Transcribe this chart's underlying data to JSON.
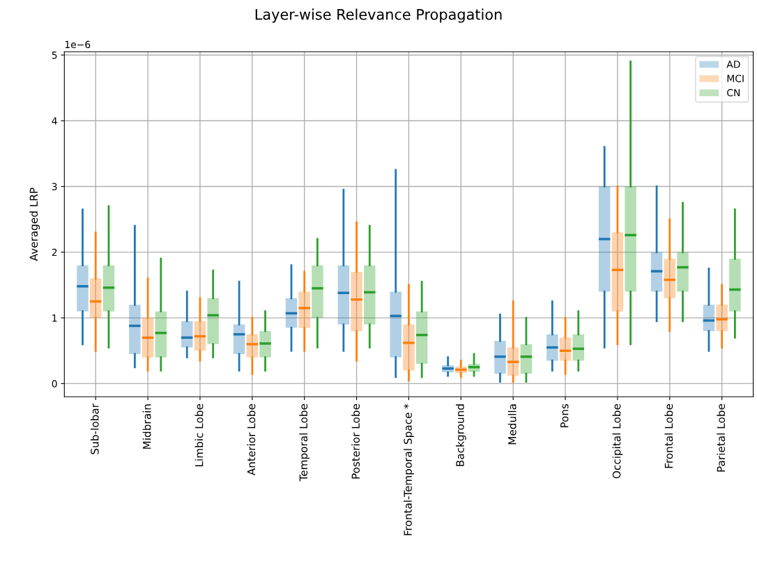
{
  "chart_data": {
    "type": "box",
    "title": "Layer-wise Relevance Propagation",
    "ylabel": "Averaged LRP",
    "annotations": [
      "1e−6"
    ],
    "categories": [
      "Sub-lobar",
      "Midbrain",
      "Limbic Lobe",
      "Anterior Lobe",
      "Temporal Lobe",
      "Posterior Lobe",
      "Frontal-Temporal Space *",
      "Background",
      "Medulla",
      "Pons",
      "Occipital Lobe",
      "Frontal Lobe",
      "Parietal Lobe"
    ],
    "ylim": [
      -0.2,
      5.05
    ],
    "yticks": [
      0,
      1,
      2,
      3,
      4,
      5
    ],
    "grid": true,
    "legend": "top right",
    "series": [
      {
        "name": "AD",
        "color": "#1f77b4",
        "boxes": [
          {
            "low": 0.6,
            "q1": 1.1,
            "median": 1.48,
            "q3": 1.8,
            "high": 2.65
          },
          {
            "low": 0.25,
            "q1": 0.45,
            "median": 0.88,
            "q3": 1.2,
            "high": 2.4
          },
          {
            "low": 0.4,
            "q1": 0.55,
            "median": 0.7,
            "q3": 0.95,
            "high": 1.4
          },
          {
            "low": 0.2,
            "q1": 0.45,
            "median": 0.75,
            "q3": 0.9,
            "high": 1.55
          },
          {
            "low": 0.5,
            "q1": 0.85,
            "median": 1.07,
            "q3": 1.3,
            "high": 1.8
          },
          {
            "low": 0.5,
            "q1": 0.9,
            "median": 1.38,
            "q3": 1.8,
            "high": 2.95
          },
          {
            "low": 0.1,
            "q1": 0.4,
            "median": 1.03,
            "q3": 1.4,
            "high": 3.25
          },
          {
            "low": 0.12,
            "q1": 0.17,
            "median": 0.23,
            "q3": 0.28,
            "high": 0.4
          },
          {
            "low": 0.03,
            "q1": 0.15,
            "median": 0.41,
            "q3": 0.65,
            "high": 1.05
          },
          {
            "low": 0.2,
            "q1": 0.35,
            "median": 0.55,
            "q3": 0.75,
            "high": 1.25
          },
          {
            "low": 0.55,
            "q1": 1.4,
            "median": 2.2,
            "q3": 3.0,
            "high": 3.6
          },
          {
            "low": 0.95,
            "q1": 1.4,
            "median": 1.71,
            "q3": 2.0,
            "high": 3.0
          },
          {
            "low": 0.5,
            "q1": 0.8,
            "median": 0.96,
            "q3": 1.2,
            "high": 1.75
          }
        ]
      },
      {
        "name": "MCI",
        "color": "#ff7f0e",
        "boxes": [
          {
            "low": 0.5,
            "q1": 1.0,
            "median": 1.25,
            "q3": 1.6,
            "high": 2.3
          },
          {
            "low": 0.2,
            "q1": 0.4,
            "median": 0.7,
            "q3": 1.0,
            "high": 1.6
          },
          {
            "low": 0.35,
            "q1": 0.5,
            "median": 0.72,
            "q3": 0.95,
            "high": 1.3
          },
          {
            "low": 0.15,
            "q1": 0.4,
            "median": 0.6,
            "q3": 0.75,
            "high": 1.0
          },
          {
            "low": 0.5,
            "q1": 0.85,
            "median": 1.15,
            "q3": 1.4,
            "high": 1.7
          },
          {
            "low": 0.35,
            "q1": 0.8,
            "median": 1.28,
            "q3": 1.7,
            "high": 2.45
          },
          {
            "low": 0.05,
            "q1": 0.2,
            "median": 0.62,
            "q3": 0.9,
            "high": 1.5
          },
          {
            "low": 0.1,
            "q1": 0.16,
            "median": 0.21,
            "q3": 0.26,
            "high": 0.35
          },
          {
            "low": 0.03,
            "q1": 0.12,
            "median": 0.33,
            "q3": 0.55,
            "high": 1.25
          },
          {
            "low": 0.15,
            "q1": 0.35,
            "median": 0.5,
            "q3": 0.7,
            "high": 1.0
          },
          {
            "low": 0.6,
            "q1": 1.1,
            "median": 1.73,
            "q3": 2.3,
            "high": 3.0
          },
          {
            "low": 0.8,
            "q1": 1.3,
            "median": 1.58,
            "q3": 1.9,
            "high": 2.5
          },
          {
            "low": 0.55,
            "q1": 0.8,
            "median": 0.98,
            "q3": 1.2,
            "high": 1.5
          }
        ]
      },
      {
        "name": "CN",
        "color": "#2ca02c",
        "boxes": [
          {
            "low": 0.55,
            "q1": 1.1,
            "median": 1.46,
            "q3": 1.8,
            "high": 2.7
          },
          {
            "low": 0.2,
            "q1": 0.4,
            "median": 0.77,
            "q3": 1.1,
            "high": 1.9
          },
          {
            "low": 0.4,
            "q1": 0.6,
            "median": 1.04,
            "q3": 1.3,
            "high": 1.72
          },
          {
            "low": 0.2,
            "q1": 0.4,
            "median": 0.61,
            "q3": 0.8,
            "high": 1.1
          },
          {
            "low": 0.55,
            "q1": 1.0,
            "median": 1.45,
            "q3": 1.8,
            "high": 2.2
          },
          {
            "low": 0.55,
            "q1": 0.9,
            "median": 1.39,
            "q3": 1.8,
            "high": 2.4
          },
          {
            "low": 0.1,
            "q1": 0.3,
            "median": 0.74,
            "q3": 1.1,
            "high": 1.55
          },
          {
            "low": 0.12,
            "q1": 0.18,
            "median": 0.25,
            "q3": 0.3,
            "high": 0.45
          },
          {
            "low": 0.03,
            "q1": 0.15,
            "median": 0.41,
            "q3": 0.6,
            "high": 1.0
          },
          {
            "low": 0.2,
            "q1": 0.35,
            "median": 0.53,
            "q3": 0.75,
            "high": 1.1
          },
          {
            "low": 0.6,
            "q1": 1.4,
            "median": 2.26,
            "q3": 3.0,
            "high": 4.9
          },
          {
            "low": 0.95,
            "q1": 1.4,
            "median": 1.77,
            "q3": 2.0,
            "high": 2.75
          },
          {
            "low": 0.7,
            "q1": 1.1,
            "median": 1.43,
            "q3": 1.9,
            "high": 2.65
          }
        ]
      }
    ]
  }
}
